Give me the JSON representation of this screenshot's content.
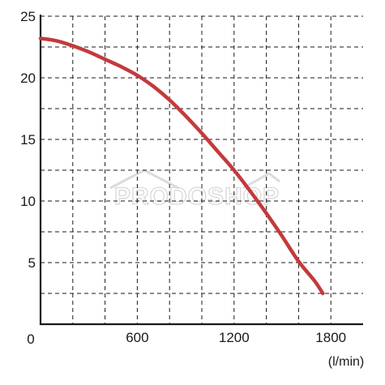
{
  "chart_data": {
    "type": "line",
    "xlabel": "(l/min)",
    "ylabel": "",
    "xlim": [
      0,
      2000
    ],
    "ylim": [
      0,
      25
    ],
    "x_ticks": [
      {
        "value": 0,
        "label": "0"
      },
      {
        "value": 600,
        "label": "600"
      },
      {
        "value": 1200,
        "label": "1200"
      },
      {
        "value": 1800,
        "label": "1800"
      }
    ],
    "y_ticks": [
      {
        "value": 5,
        "label": "5"
      },
      {
        "value": 10,
        "label": "10"
      },
      {
        "value": 15,
        "label": "15"
      },
      {
        "value": 20,
        "label": "20"
      },
      {
        "value": 25,
        "label": "25"
      }
    ],
    "x_grid": [
      200,
      400,
      600,
      800,
      1000,
      1200,
      1400,
      1600,
      1800
    ],
    "y_grid": [
      2.5,
      5,
      7.5,
      10,
      12.5,
      15,
      17.5,
      20,
      22.5,
      25
    ],
    "grid": true,
    "grid_style": "dashed",
    "series": [
      {
        "color": "#c33a3d",
        "x": [
          0,
          100,
          200,
          300,
          400,
          500,
          600,
          700,
          800,
          900,
          1000,
          1100,
          1200,
          1300,
          1400,
          1500,
          1600,
          1700,
          1750
        ],
        "y": [
          23.2,
          23.0,
          22.6,
          22.1,
          21.5,
          20.9,
          20.2,
          19.3,
          18.2,
          16.9,
          15.5,
          14.0,
          12.5,
          10.8,
          9.0,
          7.1,
          5.1,
          3.5,
          2.5
        ]
      }
    ]
  },
  "watermark": {
    "text": "PRODOSHOP"
  }
}
